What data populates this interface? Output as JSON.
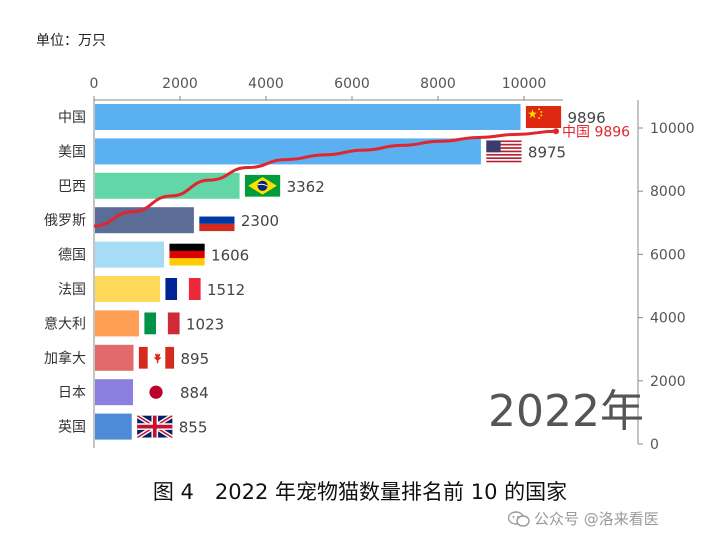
{
  "unit_label": "单位：万只",
  "caption": "图 4　2022 年宠物猫数量排名前 10 的国家",
  "watermark": "公众号 @洛来看医",
  "year_label": "2022年",
  "chart_data": {
    "type": "bar",
    "orientation": "horizontal",
    "categories": [
      "中国",
      "美国",
      "巴西",
      "俄罗斯",
      "德国",
      "法国",
      "意大利",
      "加拿大",
      "日本",
      "英国"
    ],
    "values": [
      9896,
      8975,
      3362,
      2300,
      1606,
      1512,
      1023,
      895,
      884,
      855
    ],
    "bar_colors": [
      "#5ab0f0",
      "#5ab0f0",
      "#63d6a8",
      "#5b6c96",
      "#a6dcf6",
      "#ffd95a",
      "#ff9e55",
      "#e26a6a",
      "#8b7fe0",
      "#4e8bd6"
    ],
    "x_axis": {
      "ticks": [
        0,
        2000,
        4000,
        6000,
        8000,
        10000
      ],
      "range": [
        0,
        11000
      ],
      "position": "top"
    },
    "y2_axis": {
      "ticks": [
        0,
        2000,
        4000,
        6000,
        8000,
        10000
      ],
      "range": [
        0,
        10800
      ],
      "position": "right"
    },
    "line": {
      "label": "中国 9896",
      "color": "#e0262f",
      "x": [
        0,
        1,
        2,
        3,
        4,
        5,
        6,
        7,
        8,
        9,
        10,
        11,
        12
      ],
      "y": [
        6900,
        7350,
        7850,
        8350,
        8750,
        9000,
        9150,
        9300,
        9450,
        9580,
        9700,
        9800,
        9896
      ]
    },
    "flags": [
      "cn",
      "us",
      "br",
      "ru",
      "de",
      "fr",
      "it",
      "ca",
      "jp",
      "gb"
    ],
    "grid": false,
    "legend": "none"
  }
}
